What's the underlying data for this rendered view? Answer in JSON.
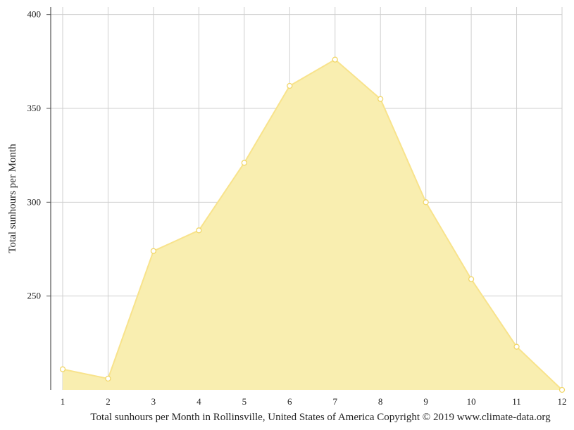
{
  "chart_data": {
    "type": "area",
    "title": "",
    "xlabel": "Total sunhours per Month in Rollinsville, United States of America Copyright © 2019 www.climate-data.org",
    "ylabel": "Total sunhours per Month",
    "x": [
      1,
      2,
      3,
      4,
      5,
      6,
      7,
      8,
      9,
      10,
      11,
      12
    ],
    "series": [
      {
        "values": [
          211,
          206,
          274,
          285,
          321,
          362,
          376,
          355,
          300,
          259,
          223,
          200
        ]
      }
    ],
    "x_ticks": [
      "1",
      "2",
      "3",
      "4",
      "5",
      "6",
      "7",
      "8",
      "9",
      "10",
      "11",
      "12"
    ],
    "y_ticks": [
      250,
      300,
      350,
      400
    ],
    "y_tick_labels": [
      "250",
      "300",
      "350",
      "400"
    ],
    "ylim": [
      200,
      404
    ],
    "grid": true,
    "legend": "none",
    "colors": {
      "area_fill": "#f9eeb0",
      "line": "#f8e38c",
      "marker_fill": "#ffffff",
      "marker_stroke": "#f1d76a",
      "grid": "#cfcfcf",
      "axis": "#555555"
    }
  }
}
